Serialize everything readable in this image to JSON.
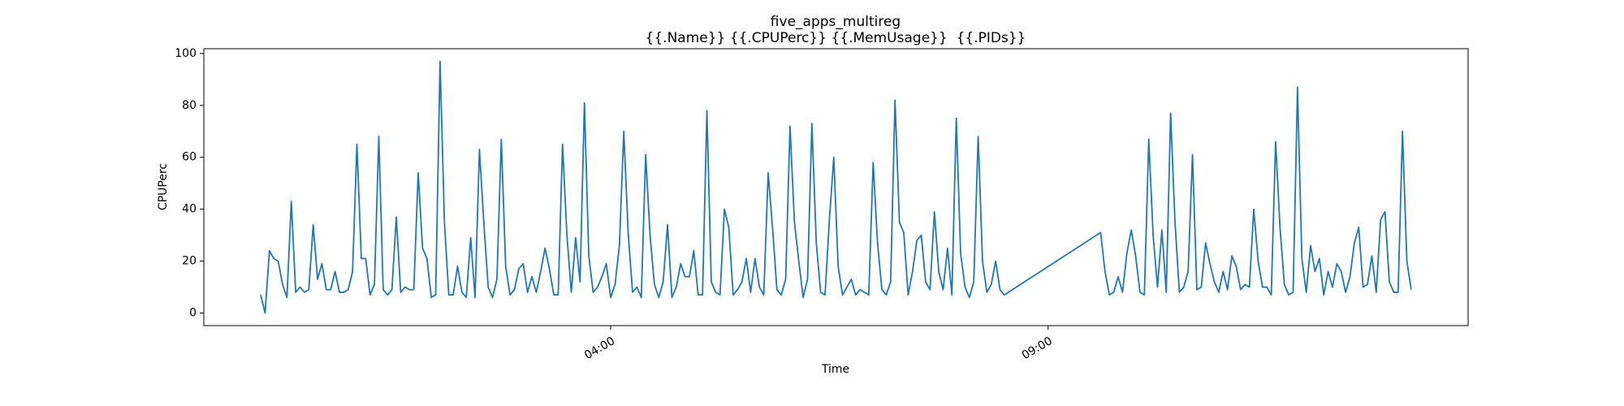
{
  "chart_data": {
    "type": "line",
    "title": "five_apps_multireg",
    "subtitle": "{{.Name}} {{.CPUPerc}} {{.MemUsage}}  {{.PIDs}}",
    "x_label": "Time",
    "y_label": "CPUPerc",
    "color": "#1f77b4",
    "x": [
      0,
      3,
      6,
      9,
      12,
      15,
      18,
      21,
      24,
      27,
      30,
      33,
      36,
      39,
      42,
      45,
      48,
      51,
      54,
      57,
      60,
      63,
      66,
      69,
      72,
      75,
      78,
      81,
      84,
      87,
      90,
      93,
      96,
      99,
      102,
      105,
      108,
      111,
      114,
      117,
      120,
      123,
      126,
      129,
      132,
      135,
      138,
      141,
      144,
      147,
      150,
      153,
      156,
      159,
      162,
      165,
      168,
      171,
      174,
      177,
      180,
      183,
      186,
      189,
      192,
      195,
      198,
      201,
      204,
      207,
      210,
      213,
      216,
      219,
      222,
      225,
      228,
      231,
      234,
      237,
      240,
      243,
      246,
      249,
      252,
      255,
      258,
      261,
      264,
      267,
      270,
      273,
      276,
      279,
      282,
      285,
      288,
      291,
      294,
      297,
      300,
      303,
      306,
      309,
      312,
      315,
      318,
      321,
      324,
      327,
      330,
      333,
      336,
      339,
      342,
      345,
      348,
      351,
      354,
      357,
      360,
      363,
      366,
      369,
      372,
      375,
      378,
      381,
      384,
      387,
      390,
      393,
      396,
      399,
      402,
      405,
      408,
      411,
      414,
      417,
      420,
      423,
      426,
      429,
      432,
      435,
      438,
      441,
      444,
      447,
      450,
      453,
      456,
      459,
      462,
      465,
      468,
      471,
      474,
      477,
      480,
      483,
      486,
      489,
      492,
      495,
      498,
      501,
      504,
      507,
      510,
      576,
      579,
      582,
      585,
      588,
      591,
      594,
      597,
      600,
      603,
      606,
      609,
      612,
      615,
      618,
      621,
      624,
      627,
      630,
      633,
      636,
      639,
      642,
      645,
      648,
      651,
      654,
      657,
      660,
      663,
      666,
      669,
      672,
      675,
      678,
      681,
      684,
      687,
      690,
      693,
      696,
      699,
      702,
      705,
      708,
      711,
      714,
      717,
      720,
      723,
      726,
      729,
      732,
      735,
      738,
      741,
      744,
      747,
      750,
      753,
      756,
      759,
      762,
      765,
      768,
      771,
      774,
      777,
      780,
      783,
      786,
      789
    ],
    "values": [
      7,
      0,
      24,
      21,
      20,
      11,
      6,
      43,
      8,
      10,
      8,
      9,
      34,
      13,
      19,
      9,
      9,
      16,
      8,
      8,
      9,
      16,
      65,
      21,
      21,
      7,
      11,
      68,
      9,
      7,
      9,
      37,
      8,
      10,
      9,
      9,
      54,
      25,
      21,
      6,
      7,
      97,
      35,
      7,
      7,
      18,
      8,
      6,
      29,
      6,
      63,
      35,
      10,
      6,
      13,
      67,
      18,
      7,
      9,
      17,
      19,
      8,
      14,
      8,
      16,
      25,
      17,
      7,
      7,
      65,
      30,
      8,
      29,
      12,
      81,
      22,
      8,
      10,
      14,
      19,
      6,
      11,
      26,
      70,
      31,
      8,
      10,
      6,
      61,
      30,
      11,
      6,
      12,
      34,
      6,
      10,
      19,
      14,
      14,
      24,
      7,
      7,
      78,
      12,
      8,
      7,
      40,
      33,
      7,
      9,
      12,
      21,
      8,
      21,
      10,
      7,
      54,
      33,
      9,
      7,
      13,
      72,
      35,
      20,
      6,
      13,
      73,
      27,
      8,
      7,
      36,
      60,
      18,
      7,
      10,
      13,
      7,
      9,
      8,
      7,
      58,
      27,
      9,
      7,
      12,
      82,
      35,
      31,
      7,
      16,
      28,
      30,
      12,
      9,
      39,
      16,
      9,
      25,
      7,
      75,
      23,
      10,
      6,
      12,
      68,
      20,
      8,
      11,
      20,
      9,
      7,
      31,
      16,
      7,
      8,
      14,
      8,
      23,
      32,
      22,
      8,
      7,
      67,
      30,
      10,
      32,
      8,
      77,
      35,
      8,
      10,
      16,
      61,
      9,
      10,
      27,
      19,
      12,
      8,
      16,
      9,
      22,
      18,
      9,
      11,
      10,
      40,
      20,
      10,
      10,
      7,
      66,
      33,
      11,
      7,
      8,
      87,
      21,
      8,
      26,
      16,
      21,
      7,
      16,
      10,
      19,
      16,
      8,
      14,
      27,
      33,
      10,
      11,
      22,
      8,
      36,
      39,
      12,
      8,
      8,
      70,
      20,
      9
    ],
    "xlim": [
      -39,
      828
    ],
    "xticks": [
      {
        "value": 240,
        "label": "04:00"
      },
      {
        "value": 540,
        "label": "09:00"
      }
    ],
    "ylim": [
      -4.85,
      101.85
    ],
    "yticks": [
      0,
      20,
      40,
      60,
      80,
      100
    ]
  }
}
